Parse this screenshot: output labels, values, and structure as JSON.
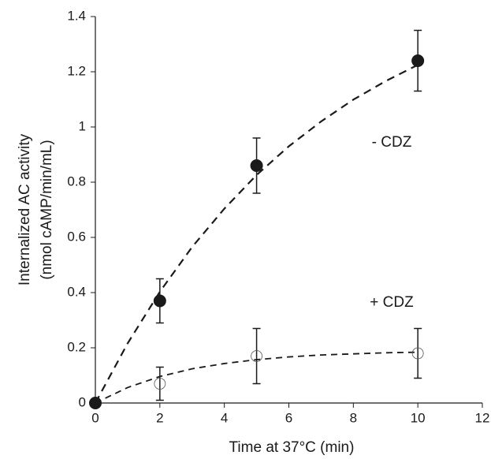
{
  "chart_data": {
    "type": "scatter",
    "xlabel": "Time at 37°C (min)",
    "ylabel": [
      "Internalized AC activity",
      "(nmol cAMP/min/mL)"
    ],
    "xlim": [
      0,
      12
    ],
    "xticks": [
      0,
      2,
      4,
      6,
      8,
      10,
      12
    ],
    "ylim": [
      0,
      1.4
    ],
    "yticks": [
      0,
      0.2,
      0.4,
      0.6,
      0.8,
      1,
      1.2,
      1.4
    ],
    "series": [
      {
        "name": "- CDZ",
        "color": "#1a1a1a",
        "marker": "filled",
        "x": [
          0,
          2,
          5,
          10
        ],
        "values": [
          0,
          0.37,
          0.86,
          1.24
        ],
        "errors": [
          null,
          0.08,
          0.1,
          0.11
        ]
      },
      {
        "name": "+ CDZ",
        "color": "#1a1a1a",
        "marker": "open",
        "x": [
          0,
          2,
          5,
          10
        ],
        "values": [
          0,
          0.07,
          0.17,
          0.18
        ],
        "errors": [
          null,
          0.06,
          0.1,
          0.09
        ]
      }
    ],
    "curves": [
      {
        "x": [
          0,
          1,
          2,
          3,
          4,
          5,
          6,
          7,
          8,
          9,
          10
        ],
        "values": [
          0,
          0.216,
          0.403,
          0.565,
          0.704,
          0.826,
          0.93,
          1.02,
          1.099,
          1.166,
          1.225
        ]
      },
      {
        "x": [
          0,
          1,
          2,
          3,
          4,
          5,
          6,
          7,
          8,
          9,
          10
        ],
        "values": [
          0,
          0.056,
          0.096,
          0.124,
          0.143,
          0.157,
          0.167,
          0.174,
          0.178,
          0.182,
          0.184
        ]
      }
    ]
  }
}
